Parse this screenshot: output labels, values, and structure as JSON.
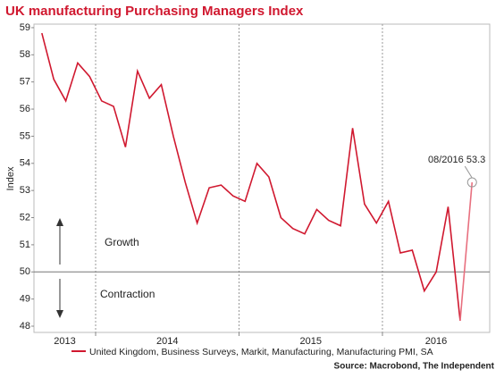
{
  "chart_data": {
    "type": "line",
    "title": "UK manufacturing Purchasing Managers Index",
    "ylabel": "Index",
    "x": [
      2013.625,
      2013.708,
      2013.792,
      2013.875,
      2013.958,
      2014.042,
      2014.125,
      2014.208,
      2014.292,
      2014.375,
      2014.458,
      2014.542,
      2014.625,
      2014.708,
      2014.792,
      2014.875,
      2014.958,
      2015.042,
      2015.125,
      2015.208,
      2015.292,
      2015.375,
      2015.458,
      2015.542,
      2015.625,
      2015.708,
      2015.792,
      2015.875,
      2015.958,
      2016.042,
      2016.125,
      2016.208,
      2016.292,
      2016.375,
      2016.458,
      2016.542,
      2016.625
    ],
    "series": [
      {
        "name": "United Kingdom, Business Surveys, Markit, Manufacturing, Manufacturing PMI, SA",
        "color": "#d0182f",
        "highlight_color": "#e8707f",
        "values": [
          58.8,
          57.1,
          56.3,
          57.7,
          57.2,
          56.3,
          56.1,
          54.6,
          57.4,
          56.4,
          56.9,
          55.0,
          53.3,
          51.8,
          53.1,
          53.2,
          52.8,
          52.6,
          54.0,
          53.5,
          52.0,
          51.6,
          51.4,
          52.3,
          51.9,
          51.7,
          55.3,
          52.5,
          51.8,
          52.6,
          50.7,
          50.8,
          49.3,
          50.0,
          52.4,
          48.2,
          53.3
        ]
      }
    ],
    "xlim": [
      2013.57,
      2016.748
    ],
    "xticks": [
      2014,
      2015,
      2016
    ],
    "year_labels": [
      "2013",
      "2014",
      "2015",
      "2016"
    ],
    "ylim": [
      47.77,
      59.13
    ],
    "yticks": [
      48,
      49,
      50,
      51,
      52,
      53,
      54,
      55,
      56,
      57,
      58,
      59
    ],
    "reference_line": 50,
    "annotations": {
      "last_point": "08/2016 53.3",
      "growth": "Growth",
      "contraction": "Contraction"
    },
    "source": "Source: Macrobond, The Independent"
  }
}
